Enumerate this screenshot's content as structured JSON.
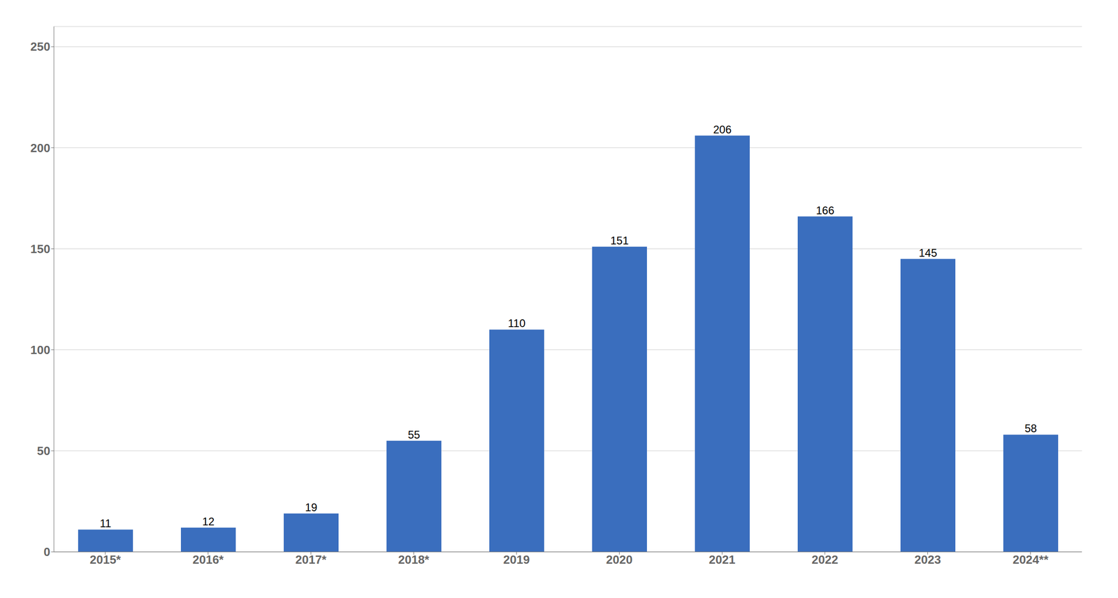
{
  "chart_data": {
    "type": "bar",
    "categories": [
      "2015*",
      "2016*",
      "2017*",
      "2018*",
      "2019",
      "2020",
      "2021",
      "2022",
      "2023",
      "2024**"
    ],
    "values": [
      11,
      12,
      19,
      55,
      110,
      151,
      206,
      166,
      145,
      58
    ],
    "color": "#3A6EBE",
    "ylim": [
      0,
      260
    ],
    "yticks": [
      0,
      50,
      100,
      150,
      200,
      250
    ],
    "grid": true,
    "data_labels": true
  }
}
